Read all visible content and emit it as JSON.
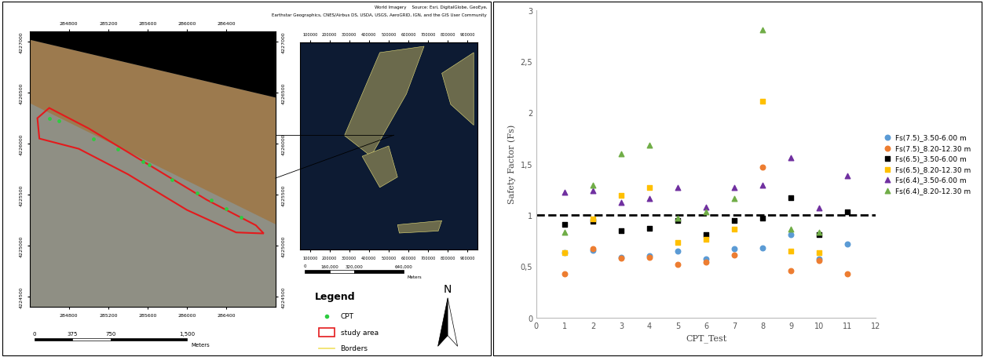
{
  "chart_data": {
    "type": "scatter",
    "x_label": "CPT_Test",
    "y_label": "Safety Factor (Fs)",
    "x": [
      1,
      2,
      3,
      4,
      5,
      6,
      7,
      8,
      9,
      10,
      11
    ],
    "series": [
      {
        "name": "Fs(7.5)_3.50-6.00 m",
        "color": "#5B9BD5",
        "marker": "circle",
        "values": [
          0.63,
          0.66,
          0.59,
          0.6,
          0.65,
          0.57,
          0.67,
          0.68,
          0.81,
          0.57,
          0.72
        ]
      },
      {
        "name": "Fs(7.5)_8.20-12.30 m",
        "color": "#ED7D31",
        "marker": "circle",
        "values": [
          0.43,
          0.67,
          0.58,
          0.59,
          0.52,
          0.54,
          0.61,
          1.47,
          0.46,
          0.56,
          0.43
        ]
      },
      {
        "name": "Fs(6.5)_3.50-6.00 m",
        "color": "#000000",
        "marker": "square",
        "values": [
          0.91,
          0.94,
          0.85,
          0.87,
          0.95,
          0.81,
          0.95,
          0.97,
          1.17,
          0.81,
          1.03
        ]
      },
      {
        "name": "Fs(6.5)_8.20-12.30 m",
        "color": "#FFC000",
        "marker": "square",
        "values": [
          0.63,
          0.96,
          1.19,
          1.27,
          0.73,
          0.76,
          0.86,
          2.11,
          0.65,
          0.63,
          null
        ]
      },
      {
        "name": "Fs(6.4)_3.50-6.00 m",
        "color": "#7030A0",
        "marker": "triangle",
        "values": [
          1.22,
          1.24,
          1.12,
          1.16,
          1.27,
          1.08,
          1.27,
          1.29,
          1.56,
          1.07,
          1.38
        ]
      },
      {
        "name": "Fs(6.4)_8.20-12.30 m",
        "color": "#70AD47",
        "marker": "triangle",
        "values": [
          0.83,
          1.29,
          1.6,
          1.68,
          0.97,
          1.03,
          1.16,
          2.81,
          0.86,
          0.83,
          null
        ]
      }
    ],
    "reference_line": 1,
    "xlim": [
      0,
      12
    ],
    "xticks": [
      0,
      1,
      2,
      3,
      4,
      5,
      6,
      7,
      8,
      9,
      10,
      11,
      12
    ],
    "ylim": [
      0,
      3
    ],
    "yticks": [
      0,
      {
        "value": 0.5,
        "label": "0,5"
      },
      1,
      {
        "value": 1.5,
        "label": "1,5"
      },
      2,
      {
        "value": 2.5,
        "label": "2,5"
      },
      3
    ],
    "grid": false,
    "legend": "right"
  },
  "map": {
    "xlim": [
      284400,
      286900
    ],
    "ylim": [
      4224400,
      4227100
    ],
    "xticks": [
      284800,
      285200,
      285600,
      286000,
      286400
    ],
    "yticks": [
      4224500,
      4225000,
      4225500,
      4226000,
      4226500,
      4227000
    ],
    "study_area": [
      [
        284480,
        4226250
      ],
      [
        284600,
        4226350
      ],
      [
        285000,
        4226150
      ],
      [
        285600,
        4225800
      ],
      [
        286200,
        4225450
      ],
      [
        286700,
        4225200
      ],
      [
        286780,
        4225120
      ],
      [
        286500,
        4225130
      ],
      [
        286000,
        4225350
      ],
      [
        285400,
        4225700
      ],
      [
        284900,
        4225950
      ],
      [
        284500,
        4226050
      ]
    ],
    "cpt": [
      [
        284600,
        4226250
      ],
      [
        284700,
        4226220
      ],
      [
        285050,
        4226050
      ],
      [
        285300,
        4225950
      ],
      [
        285550,
        4225820
      ],
      [
        285620,
        4225790
      ],
      [
        285850,
        4225650
      ],
      [
        286100,
        4225520
      ],
      [
        286250,
        4225450
      ],
      [
        286400,
        4225360
      ],
      [
        286550,
        4225280
      ]
    ],
    "scale_bar": {
      "ticks": [
        0,
        375,
        750,
        {
          "value": 1500,
          "label": "1,500"
        }
      ],
      "unit": "Meters"
    },
    "credits": [
      "World Imagery    Source: Esri, DigitalGlobe, GeoEye,",
      "Earthstar Geographics, CNES/Airbus DS, USDA, USGS, AeroGRID, IGN, and the GIS User Community"
    ],
    "inset": {
      "xlim": [
        50000,
        950000
      ],
      "xticks": [
        100000,
        200000,
        300000,
        400000,
        500000,
        600000,
        700000,
        800000,
        900000
      ],
      "scale_bar": {
        "ticks": [
          0,
          {
            "value": 160000,
            "label": "160,000"
          },
          {
            "value": 320000,
            "label": "320,000"
          },
          {
            "value": 640000,
            "label": "640,000"
          }
        ],
        "unit": "Meters"
      }
    },
    "legend": {
      "title": "Legend",
      "items": [
        {
          "name": "CPT",
          "color": "#2ecc40",
          "marker": "circle"
        },
        {
          "name": "study area",
          "color": "#e41a1c",
          "marker": "box"
        },
        {
          "name": "Borders",
          "color": "#f0e060",
          "marker": "line"
        }
      ]
    },
    "north": "N"
  }
}
